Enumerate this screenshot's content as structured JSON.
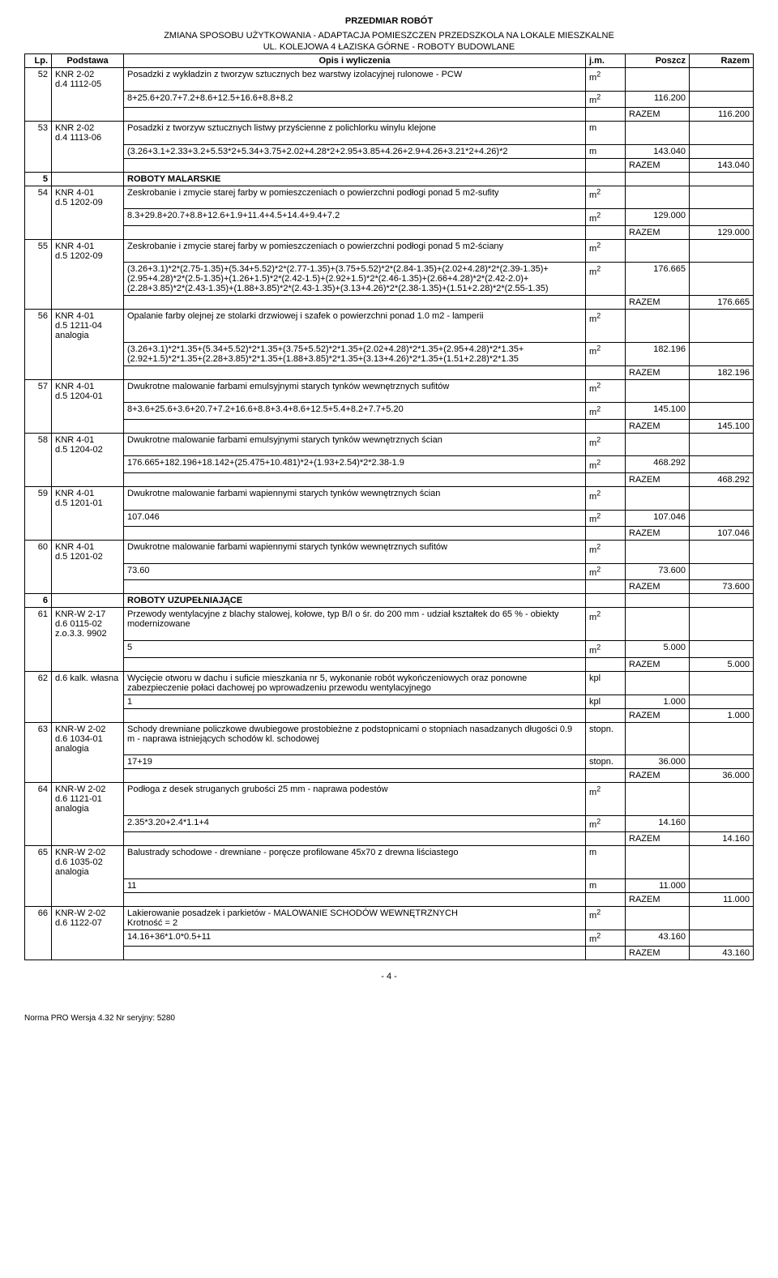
{
  "header": {
    "title": "PRZEDMIAR ROBÓT",
    "sub1": "ZMIANA SPOSOBU UŻYTKOWANIA - ADAPTACJA POMIESZCZEN PRZEDSZKOLA NA LOKALE MIESZKALNE",
    "sub2": "UL. KOLEJOWA 4 ŁAZISKA GÓRNE - ROBOTY BUDOWLANE"
  },
  "columns": {
    "lp": "Lp.",
    "podstawa": "Podstawa",
    "opis": "Opis i wyliczenia",
    "jm": "j.m.",
    "poszcz": "Poszcz",
    "razem": "Razem"
  },
  "razem_label": "RAZEM",
  "rows": [
    {
      "type": "item",
      "lp": "52",
      "pod": "KNR 2-02\nd.4 1112-05",
      "opis": "Posadzki z wykładzin z tworzyw sztucznych bez warstwy izolacyjnej rulonowe - PCW",
      "jm": "m2",
      "calc": "8+25.6+20.7+7.2+8.6+12.5+16.6+8.8+8.2",
      "cjm": "m2",
      "poszcz": "116.200",
      "razem": "116.200"
    },
    {
      "type": "item",
      "lp": "53",
      "pod": "KNR 2-02\nd.4 1113-06",
      "opis": "Posadzki z tworzyw sztucznych listwy przyścienne z polichlorku winylu klejone",
      "jm": "m",
      "calc": "(3.26+3.1+2.33+3.2+5.53*2+5.34+3.75+2.02+4.28*2+2.95+3.85+4.26+2.9+4.26+3.21*2+4.26)*2",
      "cjm": "m",
      "poszcz": "143.040",
      "razem": "143.040"
    },
    {
      "type": "section",
      "lp": "5",
      "opis": "ROBOTY MALARSKIE"
    },
    {
      "type": "item",
      "lp": "54",
      "pod": "KNR 4-01\nd.5 1202-09",
      "opis": "Zeskrobanie i zmycie starej farby w pomieszczeniach o powierzchni podłogi ponad 5 m2-sufity",
      "jm": "m2",
      "calc": "8.3+29.8+20.7+8.8+12.6+1.9+11.4+4.5+14.4+9.4+7.2",
      "cjm": "m2",
      "poszcz": "129.000",
      "razem": "129.000"
    },
    {
      "type": "item",
      "lp": "55",
      "pod": "KNR 4-01\nd.5 1202-09",
      "opis": "Zeskrobanie i zmycie starej farby w pomieszczeniach o powierzchni podłogi ponad 5 m2-ściany",
      "jm": "m2",
      "calc": "(3.26+3.1)*2*(2.75-1.35)+(5.34+5.52)*2*(2.77-1.35)+(3.75+5.52)*2*(2.84-1.35)+(2.02+4.28)*2*(2.39-1.35)+(2.95+4.28)*2*(2.5-1.35)+(1.26+1.5)*2*(2.42-1.5)+(2.92+1.5)*2*(2.46-1.35)+(2.66+4.28)*2*(2.42-2.0)+(2.28+3.85)*2*(2.43-1.35)+(1.88+3.85)*2*(2.43-1.35)+(3.13+4.26)*2*(2.38-1.35)+(1.51+2.28)*2*(2.55-1.35)",
      "cjm": "m2",
      "poszcz": "176.665",
      "razem": "176.665"
    },
    {
      "type": "item",
      "lp": "56",
      "pod": "KNR 4-01\nd.5 1211-04\nanalogia",
      "opis": "Opalanie farby olejnej ze stolarki drzwiowej i szafek o powierzchni ponad 1.0 m2 - lamperii",
      "jm": "m2",
      "calc": "(3.26+3.1)*2*1.35+(5.34+5.52)*2*1.35+(3.75+5.52)*2*1.35+(2.02+4.28)*2*1.35+(2.95+4.28)*2*1.35+(2.92+1.5)*2*1.35+(2.28+3.85)*2*1.35+(1.88+3.85)*2*1.35+(3.13+4.26)*2*1.35+(1.51+2.28)*2*1.35",
      "cjm": "m2",
      "poszcz": "182.196",
      "razem": "182.196"
    },
    {
      "type": "item",
      "lp": "57",
      "pod": "KNR 4-01\nd.5 1204-01",
      "opis": "Dwukrotne malowanie farbami emulsyjnymi starych tynków wewnętrznych sufitów",
      "jm": "m2",
      "calc": "8+3.6+25.6+3.6+20.7+7.2+16.6+8.8+3.4+8.6+12.5+5.4+8.2+7.7+5.20",
      "cjm": "m2",
      "poszcz": "145.100",
      "razem": "145.100"
    },
    {
      "type": "item",
      "lp": "58",
      "pod": "KNR 4-01\nd.5 1204-02",
      "opis": "Dwukrotne malowanie farbami emulsyjnymi starych tynków wewnętrznych ścian",
      "jm": "m2",
      "calc": "176.665+182.196+18.142+(25.475+10.481)*2+(1.93+2.54)*2*2.38-1.9",
      "cjm": "m2",
      "poszcz": "468.292",
      "razem": "468.292"
    },
    {
      "type": "item",
      "lp": "59",
      "pod": "KNR 4-01\nd.5 1201-01",
      "opis": "Dwukrotne malowanie farbami wapiennymi starych tynków wewnętrznych ścian",
      "jm": "m2",
      "calc": "107.046",
      "cjm": "m2",
      "poszcz": "107.046",
      "razem": "107.046"
    },
    {
      "type": "item",
      "lp": "60",
      "pod": "KNR 4-01\nd.5 1201-02",
      "opis": "Dwukrotne malowanie farbami wapiennymi starych tynków wewnętrznych sufitów",
      "jm": "m2",
      "calc": "73.60",
      "cjm": "m2",
      "poszcz": "73.600",
      "razem": "73.600"
    },
    {
      "type": "section",
      "lp": "6",
      "opis": "ROBOTY UZUPEŁNIAJĄCE"
    },
    {
      "type": "item",
      "lp": "61",
      "pod": "KNR-W 2-17\nd.6 0115-02\nz.o.3.3. 9902",
      "opis": "Przewody wentylacyjne z blachy stalowej, kołowe, typ B/I o śr. do 200 mm - udział kształtek do 65 % - obiekty modernizowane",
      "jm": "m2",
      "calc": "5",
      "cjm": "m2",
      "poszcz": "5.000",
      "razem": "5.000"
    },
    {
      "type": "item",
      "lp": "62",
      "pod": "d.6 kalk. własna",
      "opis": "Wycięcie otworu w dachu i suficie mieszkania nr 5, wykonanie robót wykończeniowych oraz ponowne zabezpieczenie połaci dachowej po wprowadzeniu przewodu wentylacyjnego",
      "jm": "kpl",
      "calc": "1",
      "cjm": "kpl",
      "poszcz": "1.000",
      "razem": "1.000"
    },
    {
      "type": "item",
      "lp": "63",
      "pod": "KNR-W 2-02\nd.6 1034-01\nanalogia",
      "opis": "Schody drewniane policzkowe dwubiegowe prostobieżne z podstopnicami o stopniach nasadzanych długości 0.9 m - naprawa istniejących schodów kl. schodowej",
      "jm": "stopn.",
      "calc": "17+19",
      "cjm": "stopn.",
      "poszcz": "36.000",
      "razem": "36.000"
    },
    {
      "type": "item",
      "lp": "64",
      "pod": "KNR-W 2-02\nd.6 1121-01\nanalogia",
      "opis": "Podłoga z desek struganych grubości 25 mm - naprawa podestów",
      "jm": "m2",
      "calc": "2.35*3.20+2.4*1.1+4",
      "cjm": "m2",
      "poszcz": "14.160",
      "razem": "14.160"
    },
    {
      "type": "item",
      "lp": "65",
      "pod": "KNR-W 2-02\nd.6 1035-02\nanalogia",
      "opis": "Balustrady schodowe - drewniane - poręcze profilowane 45x70 z drewna liściastego",
      "jm": "m",
      "calc": "11",
      "cjm": "m",
      "poszcz": "11.000",
      "razem": "11.000"
    },
    {
      "type": "item",
      "lp": "66",
      "pod": "KNR-W 2-02\nd.6 1122-07",
      "opis": "Lakierowanie posadzek i parkietów - MALOWANIE SCHODÓW WEWNĘTRZNYCH\nKrotność = 2",
      "jm": "m2",
      "calc": "14.16+36*1.0*0.5+11",
      "cjm": "m2",
      "poszcz": "43.160",
      "razem": "43.160"
    }
  ],
  "footer": {
    "page": "- 4 -",
    "app": "Norma PRO Wersja 4.32 Nr seryjny: 5280"
  }
}
